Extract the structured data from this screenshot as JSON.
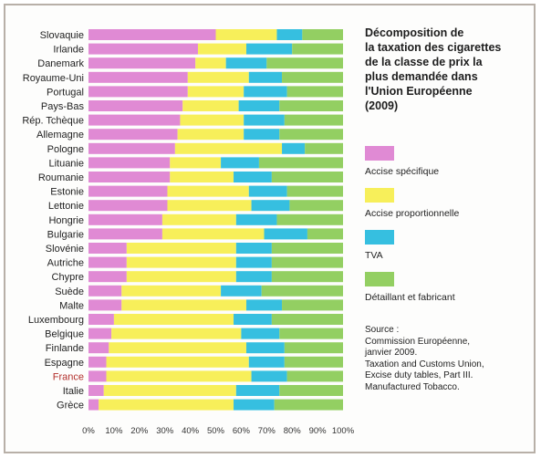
{
  "chart_data": {
    "type": "bar",
    "orientation": "horizontal",
    "stacked": true,
    "title_lines": [
      "Décomposition de",
      "la taxation des cigarettes",
      "de la classe de prix la",
      "plus demandée dans",
      "l'Union Européenne",
      "(2009)"
    ],
    "categories": [
      "Slovaquie",
      "Irlande",
      "Danemark",
      "Royaume-Uni",
      "Portugal",
      "Pays-Bas",
      "Rép. Tchèque",
      "Allemagne",
      "Pologne",
      "Lituanie",
      "Roumanie",
      "Estonie",
      "Lettonie",
      "Hongrie",
      "Bulgarie",
      "Slovénie",
      "Autriche",
      "Chypre",
      "Suède",
      "Malte",
      "Luxembourg",
      "Belgique",
      "Finlande",
      "Espagne",
      "France",
      "Italie",
      "Grèce"
    ],
    "highlight_category": "France",
    "series": [
      {
        "name": "Accise spécifique",
        "color": "#e08ad4",
        "values": [
          50,
          43,
          42,
          39,
          39,
          37,
          36,
          35,
          34,
          32,
          32,
          31,
          31,
          29,
          29,
          15,
          15,
          15,
          13,
          13,
          10,
          9,
          8,
          7,
          7,
          6,
          4
        ]
      },
      {
        "name": "Accise proportionnelle",
        "color": "#f7ef5a",
        "values": [
          24,
          19,
          12,
          24,
          22,
          22,
          25,
          26,
          42,
          20,
          25,
          32,
          33,
          29,
          40,
          43,
          43,
          43,
          39,
          49,
          47,
          51,
          54,
          56,
          57,
          52,
          53
        ]
      },
      {
        "name": "TVA",
        "color": "#36bfe0",
        "values": [
          10,
          18,
          16,
          13,
          17,
          16,
          16,
          14,
          9,
          15,
          15,
          15,
          15,
          16,
          17,
          14,
          14,
          14,
          16,
          14,
          15,
          15,
          15,
          14,
          14,
          17,
          16
        ]
      },
      {
        "name": "Détaillant et fabricant",
        "color": "#93cf62",
        "values": [
          16,
          20,
          30,
          24,
          22,
          25,
          23,
          25,
          15,
          33,
          28,
          22,
          21,
          26,
          14,
          28,
          28,
          28,
          32,
          24,
          28,
          25,
          23,
          23,
          22,
          25,
          27
        ]
      }
    ],
    "xlim": [
      0,
      100
    ],
    "x_ticks": [
      "0%",
      "10%",
      "20%",
      "30%",
      "40%",
      "50%",
      "60%",
      "70%",
      "80%",
      "90%",
      "100%"
    ],
    "source_lines": [
      "Source :",
      "Commission Européenne,",
      "janvier 2009.",
      "Taxation and Customs Union,",
      "Excise duty tables, Part III.",
      "Manufactured Tobacco."
    ]
  }
}
